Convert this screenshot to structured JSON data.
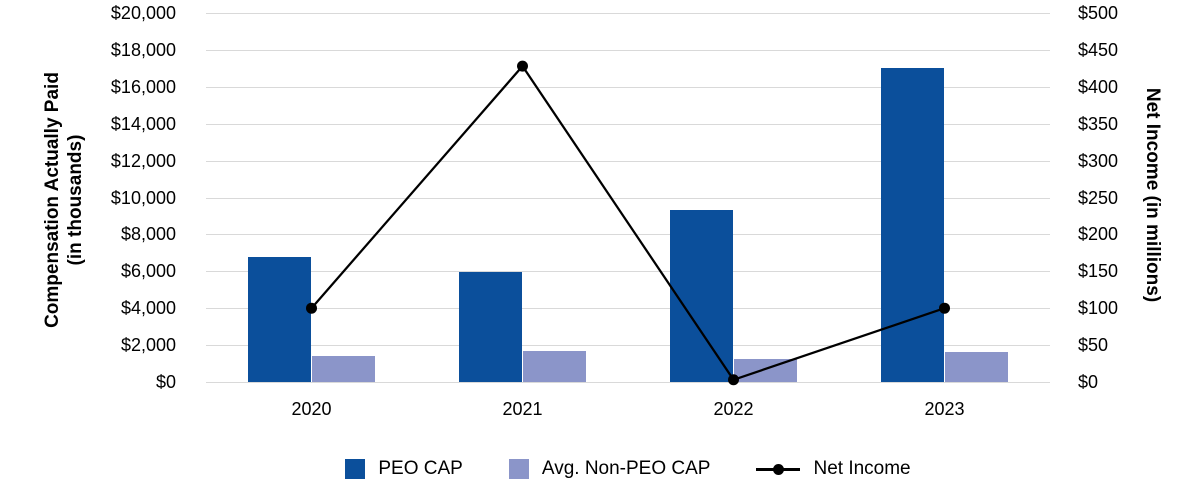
{
  "chart_data": {
    "type": "combo-bar-line",
    "title": "",
    "categories": [
      "2020",
      "2021",
      "2022",
      "2023"
    ],
    "series": [
      {
        "name": "PEO CAP",
        "type": "bar",
        "axis": "left",
        "color": "#0b4f9b",
        "values": [
          6800,
          5950,
          9300,
          17000
        ]
      },
      {
        "name": "Avg. Non-PEO CAP",
        "type": "bar",
        "axis": "left",
        "color": "#8b95c9",
        "values": [
          1400,
          1700,
          1250,
          1650
        ]
      },
      {
        "name": "Net Income",
        "type": "line",
        "axis": "right",
        "color": "#000000",
        "marker": "circle",
        "values": [
          100,
          428,
          3,
          100
        ]
      }
    ],
    "left_axis": {
      "title_line1": "Compensation Actually Paid",
      "title_line2": "(in thousands)",
      "min": 0,
      "max": 20000,
      "step": 2000,
      "ticks": [
        "$0",
        "$2,000",
        "$4,000",
        "$6,000",
        "$8,000",
        "$10,000",
        "$12,000",
        "$14,000",
        "$16,000",
        "$18,000",
        "$20,000"
      ]
    },
    "right_axis": {
      "title": "Net Income (in millions)",
      "min": 0,
      "max": 500,
      "step": 50,
      "ticks": [
        "$0",
        "$50",
        "$100",
        "$150",
        "$200",
        "$250",
        "$300",
        "$350",
        "$400",
        "$450",
        "$500"
      ]
    },
    "grid": true,
    "legend_position": "bottom",
    "gridline_color": "#d9d9d9",
    "background": "#ffffff"
  }
}
